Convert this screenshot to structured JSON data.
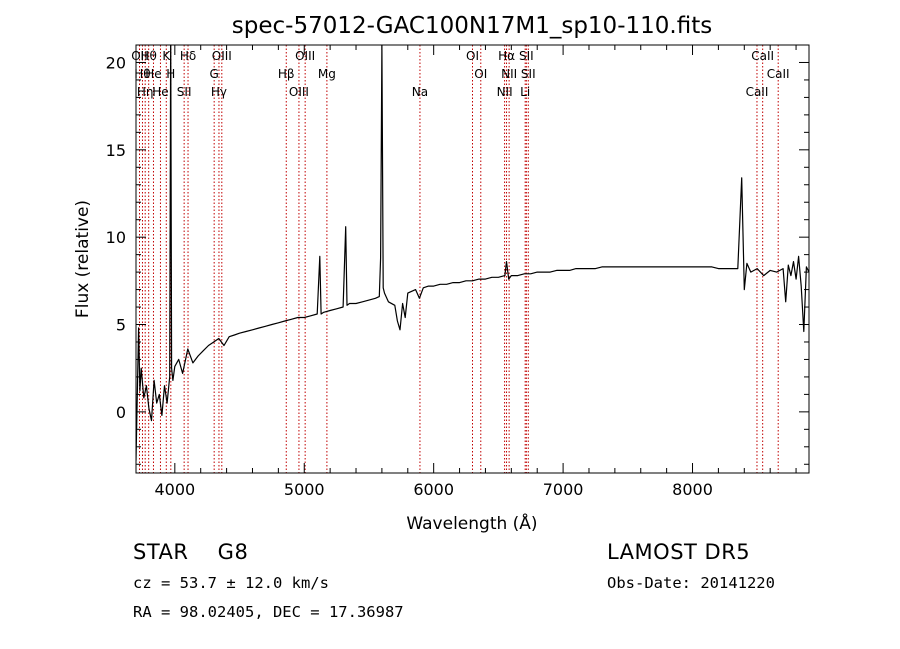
{
  "chart_data": {
    "type": "line",
    "title": "spec-57012-GAC100N17M1_sp10-110.fits",
    "xlabel": "Wavelength (Å)",
    "ylabel": "Flux (relative)",
    "xlim": [
      3700,
      8900
    ],
    "ylim": [
      -3.5,
      21.0
    ],
    "xticks": [
      4000,
      5000,
      6000,
      7000,
      8000
    ],
    "yticks": [
      0,
      5,
      10,
      15,
      20
    ],
    "grid": false,
    "colors": {
      "spectrum": "#000000",
      "line_marker": "#c00000"
    },
    "series": [
      {
        "x": [
          3700,
          3720,
          3730,
          3740,
          3760,
          3780,
          3800,
          3820,
          3840,
          3860,
          3880,
          3900,
          3920,
          3940,
          3960,
          3968,
          3975,
          3985,
          4000,
          4030,
          4060,
          4100,
          4140,
          4180,
          4220,
          4260,
          4300,
          4340,
          4380,
          4420,
          4460,
          4500,
          4550,
          4600,
          4650,
          4700,
          4750,
          4800,
          4850,
          4900,
          4950,
          5000,
          5050,
          5100,
          5120,
          5130,
          5150,
          5200,
          5250,
          5300,
          5320,
          5330,
          5350,
          5400,
          5450,
          5500,
          5550,
          5580,
          5590,
          5600,
          5610,
          5620,
          5650,
          5700,
          5720,
          5740,
          5760,
          5780,
          5800,
          5830,
          5860,
          5890,
          5920,
          5960,
          6000,
          6050,
          6100,
          6150,
          6200,
          6250,
          6300,
          6350,
          6400,
          6450,
          6500,
          6550,
          6563,
          6580,
          6600,
          6650,
          6700,
          6750,
          6800,
          6850,
          6900,
          6950,
          7000,
          7050,
          7100,
          7150,
          7200,
          7250,
          7300,
          7350,
          7400,
          7450,
          7500,
          7550,
          7600,
          7650,
          7700,
          7750,
          7800,
          7850,
          7900,
          7950,
          8000,
          8050,
          8100,
          8150,
          8200,
          8250,
          8300,
          8350,
          8380,
          8400,
          8420,
          8450,
          8500,
          8550,
          8600,
          8650,
          8700,
          8720,
          8740,
          8760,
          8780,
          8800,
          8820,
          8840,
          8860,
          8880,
          8900
        ],
        "y": [
          -2.8,
          4.8,
          1.2,
          2.5,
          0.8,
          1.5,
          0.2,
          -0.5,
          1.8,
          0.5,
          1.0,
          -0.2,
          1.5,
          0.5,
          2.0,
          22.0,
          2.5,
          1.8,
          2.6,
          3.0,
          2.2,
          3.6,
          2.8,
          3.2,
          3.5,
          3.8,
          4.0,
          4.2,
          3.8,
          4.3,
          4.4,
          4.5,
          4.6,
          4.7,
          4.8,
          4.9,
          5.0,
          5.1,
          5.2,
          5.3,
          5.4,
          5.4,
          5.5,
          5.6,
          8.9,
          5.6,
          5.7,
          5.8,
          5.9,
          6.0,
          10.6,
          6.1,
          6.2,
          6.2,
          6.3,
          6.4,
          6.5,
          6.6,
          8.8,
          21.0,
          7.1,
          6.8,
          6.3,
          6.1,
          5.2,
          4.7,
          6.2,
          5.4,
          6.8,
          6.9,
          7.0,
          6.5,
          7.1,
          7.2,
          7.2,
          7.3,
          7.3,
          7.4,
          7.4,
          7.5,
          7.5,
          7.6,
          7.6,
          7.7,
          7.7,
          7.8,
          8.6,
          7.6,
          7.8,
          7.8,
          7.9,
          7.9,
          8.0,
          8.0,
          8.0,
          8.1,
          8.1,
          8.1,
          8.2,
          8.2,
          8.2,
          8.2,
          8.3,
          8.3,
          8.3,
          8.3,
          8.3,
          8.3,
          8.3,
          8.3,
          8.3,
          8.3,
          8.3,
          8.3,
          8.3,
          8.3,
          8.3,
          8.3,
          8.3,
          8.3,
          8.2,
          8.2,
          8.2,
          8.2,
          13.4,
          7.0,
          8.5,
          8.0,
          8.2,
          7.8,
          8.1,
          8.0,
          8.2,
          6.3,
          8.4,
          7.8,
          8.6,
          7.6,
          8.9,
          7.2,
          4.6,
          8.3,
          8.0
        ]
      }
    ],
    "lines": [
      {
        "wl": 3727,
        "labels": [
          "OII"
        ]
      },
      {
        "wl": 3750,
        "labels": [
          "Hθ"
        ]
      },
      {
        "wl": 3771,
        "labels": [
          "Hη"
        ]
      },
      {
        "wl": 3798,
        "labels": [
          "Hθ"
        ]
      },
      {
        "wl": 3835,
        "labels": [
          "He"
        ]
      },
      {
        "wl": 3889,
        "labels": [
          "He"
        ]
      },
      {
        "wl": 3934,
        "labels": [
          "K"
        ]
      },
      {
        "wl": 3969,
        "labels": [
          "H"
        ]
      },
      {
        "wl": 4072,
        "labels": [
          "SII"
        ]
      },
      {
        "wl": 4102,
        "labels": [
          "Hδ"
        ]
      },
      {
        "wl": 4304,
        "labels": [
          "G"
        ]
      },
      {
        "wl": 4341,
        "labels": [
          "Hγ"
        ]
      },
      {
        "wl": 4363,
        "labels": [
          "OIII"
        ]
      },
      {
        "wl": 4861,
        "labels": [
          "Hβ"
        ]
      },
      {
        "wl": 4959,
        "labels": [
          "OIII"
        ]
      },
      {
        "wl": 5007,
        "labels": [
          "OIII"
        ]
      },
      {
        "wl": 5175,
        "labels": [
          "Mg"
        ]
      },
      {
        "wl": 5894,
        "labels": [
          "Na"
        ]
      },
      {
        "wl": 6300,
        "labels": [
          "OI"
        ]
      },
      {
        "wl": 6364,
        "labels": [
          "OI"
        ]
      },
      {
        "wl": 6548,
        "labels": [
          "NII"
        ]
      },
      {
        "wl": 6563,
        "labels": [
          "Hα"
        ]
      },
      {
        "wl": 6583,
        "labels": [
          "NII"
        ]
      },
      {
        "wl": 6707,
        "labels": [
          "Li"
        ]
      },
      {
        "wl": 6716,
        "labels": [
          "SII"
        ]
      },
      {
        "wl": 6731,
        "labels": [
          "SII"
        ]
      },
      {
        "wl": 8498,
        "labels": [
          "CaII"
        ]
      },
      {
        "wl": 8542,
        "labels": [
          "CaII"
        ]
      },
      {
        "wl": 8662,
        "labels": [
          "CaII"
        ]
      }
    ]
  },
  "info": {
    "class": "STAR",
    "subclass": "G8",
    "survey": "LAMOST DR5",
    "cz": "cz = 53.7 ± 12.0 km/s",
    "obs_date": "Obs-Date: 20141220",
    "coords": "RA =  98.02405, DEC =  17.36987"
  }
}
